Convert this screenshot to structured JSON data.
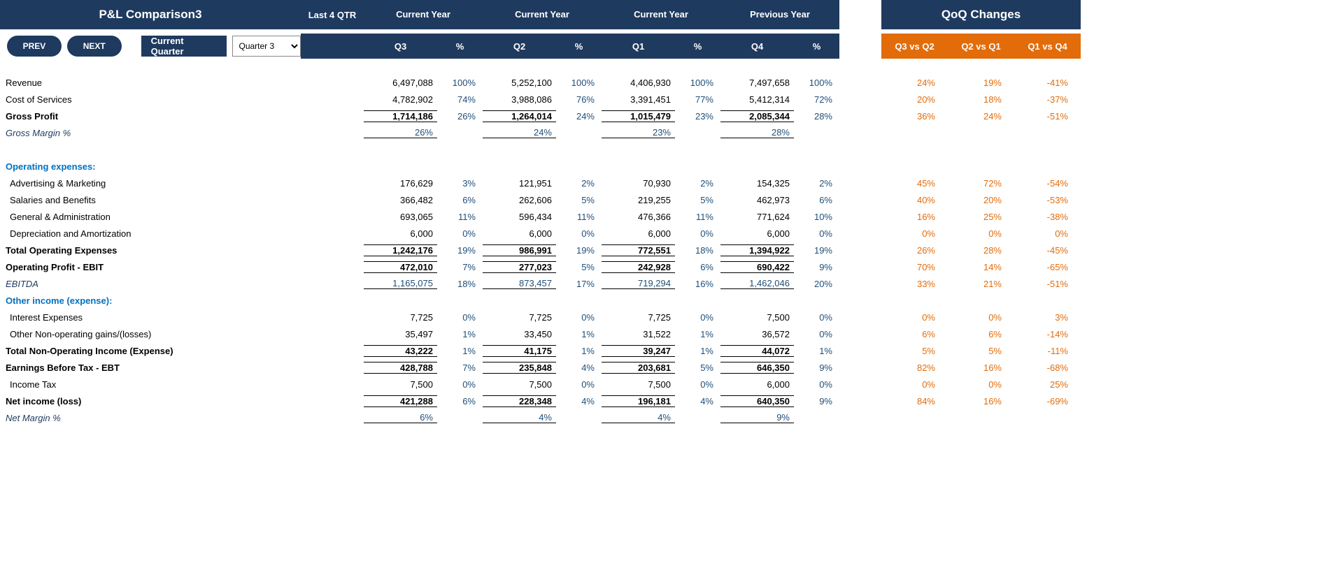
{
  "colors": {
    "navy": "#1f3a5f",
    "orange": "#e36c0a",
    "pctBlue": "#1f4e79",
    "sectionBlue": "#0070c0"
  },
  "header": {
    "title": "P&L Comparison3",
    "last4": "Last 4 QTR",
    "groups": [
      "Current Year",
      "Current Year",
      "Current Year",
      "Previous Year"
    ],
    "qoqTitle": "QoQ Changes",
    "prev": "PREV",
    "next": "NEXT",
    "cqLabel": "Current Quarter",
    "cqSelected": "Quarter 3",
    "cols": [
      "Q3",
      "%",
      "Q2",
      "%",
      "Q1",
      "%",
      "Q4",
      "%"
    ],
    "qoqCols": [
      "Q3 vs Q2",
      "Q2 vs Q1",
      "Q1 vs Q4"
    ]
  },
  "rows": [
    {
      "k": "rev",
      "label": "Revenue",
      "vals": [
        "6,497,088",
        "100%",
        "5,252,100",
        "100%",
        "4,406,930",
        "100%",
        "7,497,658",
        "100%"
      ],
      "qoq": [
        "24%",
        "19%",
        "-41%"
      ]
    },
    {
      "k": "cos",
      "label": "Cost of Services",
      "vals": [
        "4,782,902",
        "74%",
        "3,988,086",
        "76%",
        "3,391,451",
        "77%",
        "5,412,314",
        "72%"
      ],
      "qoq": [
        "20%",
        "18%",
        "-37%"
      ]
    },
    {
      "k": "gp",
      "label": "Gross Profit",
      "bold": true,
      "ul": true,
      "vals": [
        "1,714,186",
        "26%",
        "1,264,014",
        "24%",
        "1,015,479",
        "23%",
        "2,085,344",
        "28%"
      ],
      "qoq": [
        "36%",
        "24%",
        "-51%"
      ]
    },
    {
      "k": "gm",
      "label": "Gross Margin %",
      "italic": true,
      "blue": true,
      "ulb": true,
      "vals": [
        "26%",
        "",
        "24%",
        "",
        "23%",
        "",
        "28%",
        ""
      ],
      "qoq": [
        "",
        "",
        ""
      ]
    },
    {
      "k": "spacer"
    },
    {
      "k": "opexhdr",
      "label": "Operating expenses:",
      "section": true
    },
    {
      "k": "adv",
      "label": "Advertising & Marketing",
      "indent": true,
      "vals": [
        "176,629",
        "3%",
        "121,951",
        "2%",
        "70,930",
        "2%",
        "154,325",
        "2%"
      ],
      "qoq": [
        "45%",
        "72%",
        "-54%"
      ]
    },
    {
      "k": "sal",
      "label": "Salaries and Benefits",
      "indent": true,
      "vals": [
        "366,482",
        "6%",
        "262,606",
        "5%",
        "219,255",
        "5%",
        "462,973",
        "6%"
      ],
      "qoq": [
        "40%",
        "20%",
        "-53%"
      ]
    },
    {
      "k": "ga",
      "label": "General & Administration",
      "indent": true,
      "vals": [
        "693,065",
        "11%",
        "596,434",
        "11%",
        "476,366",
        "11%",
        "771,624",
        "10%"
      ],
      "qoq": [
        "16%",
        "25%",
        "-38%"
      ]
    },
    {
      "k": "da",
      "label": "Depreciation and Amortization",
      "indent": true,
      "vals": [
        "6,000",
        "0%",
        "6,000",
        "0%",
        "6,000",
        "0%",
        "6,000",
        "0%"
      ],
      "qoq": [
        "0%",
        "0%",
        "0%"
      ]
    },
    {
      "k": "toe",
      "label": "Total Operating Expenses",
      "bold": true,
      "ul": true,
      "vals": [
        "1,242,176",
        "19%",
        "986,991",
        "19%",
        "772,551",
        "18%",
        "1,394,922",
        "19%"
      ],
      "qoq": [
        "26%",
        "28%",
        "-45%"
      ]
    },
    {
      "k": "ebit",
      "label": "Operating Profit - EBIT",
      "bold": true,
      "ul": true,
      "vals": [
        "472,010",
        "7%",
        "277,023",
        "5%",
        "242,928",
        "6%",
        "690,422",
        "9%"
      ],
      "qoq": [
        "70%",
        "14%",
        "-65%"
      ]
    },
    {
      "k": "ebitda",
      "label": "EBITDA",
      "italic": true,
      "blue": true,
      "ulb": true,
      "vals": [
        "1,165,075",
        "18%",
        "873,457",
        "17%",
        "719,294",
        "16%",
        "1,462,046",
        "20%"
      ],
      "qoq": [
        "33%",
        "21%",
        "-51%"
      ]
    },
    {
      "k": "oihdr",
      "label": "Other income (expense):",
      "section": true
    },
    {
      "k": "int",
      "label": "Interest Expenses",
      "indent": true,
      "vals": [
        "7,725",
        "0%",
        "7,725",
        "0%",
        "7,725",
        "0%",
        "7,500",
        "0%"
      ],
      "qoq": [
        "0%",
        "0%",
        "3%"
      ]
    },
    {
      "k": "onop",
      "label": "Other Non-operating gains/(losses)",
      "indent": true,
      "vals": [
        "35,497",
        "1%",
        "33,450",
        "1%",
        "31,522",
        "1%",
        "36,572",
        "0%"
      ],
      "qoq": [
        "6%",
        "6%",
        "-14%"
      ]
    },
    {
      "k": "tnop",
      "label": "Total Non-Operating Income (Expense)",
      "bold": true,
      "ul": true,
      "vals": [
        "43,222",
        "1%",
        "41,175",
        "1%",
        "39,247",
        "1%",
        "44,072",
        "1%"
      ],
      "qoq": [
        "5%",
        "5%",
        "-11%"
      ]
    },
    {
      "k": "ebt",
      "label": "Earnings Before Tax - EBT",
      "bold": true,
      "ul": true,
      "vals": [
        "428,788",
        "7%",
        "235,848",
        "4%",
        "203,681",
        "5%",
        "646,350",
        "9%"
      ],
      "qoq": [
        "82%",
        "16%",
        "-68%"
      ]
    },
    {
      "k": "tax",
      "label": "Income Tax",
      "indent": true,
      "vals": [
        "7,500",
        "0%",
        "7,500",
        "0%",
        "7,500",
        "0%",
        "6,000",
        "0%"
      ],
      "qoq": [
        "0%",
        "0%",
        "25%"
      ]
    },
    {
      "k": "ni",
      "label": "Net income (loss)",
      "bold": true,
      "ul": true,
      "vals": [
        "421,288",
        "6%",
        "228,348",
        "4%",
        "196,181",
        "4%",
        "640,350",
        "9%"
      ],
      "qoq": [
        "84%",
        "16%",
        "-69%"
      ]
    },
    {
      "k": "nm",
      "label": "Net Margin %",
      "italic": true,
      "blue": true,
      "ulb": true,
      "vals": [
        "6%",
        "",
        "4%",
        "",
        "4%",
        "",
        "9%",
        ""
      ],
      "qoq": [
        "",
        "",
        ""
      ]
    }
  ]
}
